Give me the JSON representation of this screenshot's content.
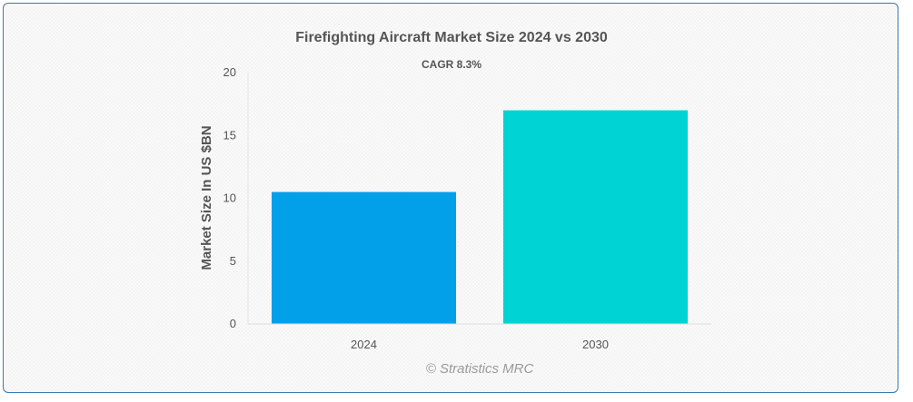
{
  "chart_data": {
    "type": "bar",
    "title": "Firefighting Aircraft Market Size 2024 vs 2030",
    "subtitle": "CAGR 8.3%",
    "ylabel": "Market Size In US $BN",
    "xlabel": "",
    "categories": [
      "2024",
      "2030"
    ],
    "values": [
      10.5,
      17.0
    ],
    "colors": [
      "#03a0ea",
      "#00d3d3"
    ],
    "ylim": [
      0,
      20
    ],
    "yticks": [
      0,
      5,
      10,
      15,
      20
    ],
    "grid": false,
    "legend": "none"
  },
  "credit": "© Stratistics MRC"
}
